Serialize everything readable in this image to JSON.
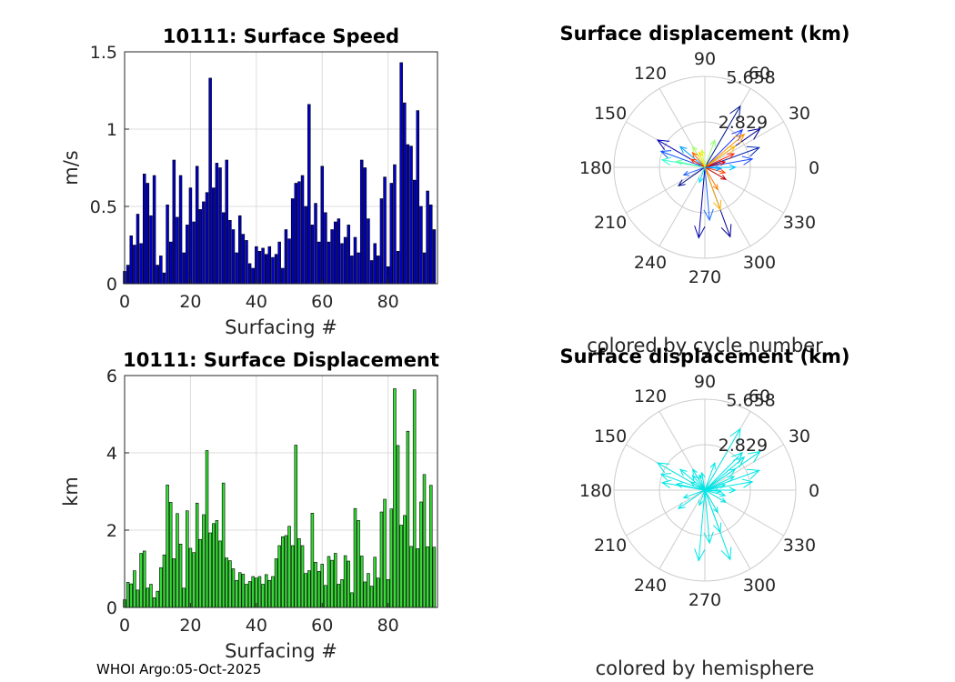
{
  "footer": "WHOI Argo:05-Oct-2025",
  "chart_data": [
    {
      "type": "bar",
      "title": "10111: Surface Speed",
      "xlabel": "Surfacing #",
      "ylabel": "m/s",
      "xlim": [
        0,
        95
      ],
      "ylim": [
        0,
        1.5
      ],
      "xticks": [
        "0",
        "20",
        "40",
        "60",
        "80"
      ],
      "yticks": [
        "0",
        "0.5",
        "1",
        "1.5"
      ],
      "bar_color": "#0000c8",
      "values": [
        0.08,
        0.12,
        0.31,
        0.25,
        0.45,
        0.26,
        0.71,
        0.65,
        0.44,
        0.7,
        0.12,
        0.18,
        0.07,
        0.51,
        0.27,
        0.8,
        0.43,
        0.7,
        0.2,
        0.38,
        0.62,
        0.4,
        0.76,
        0.48,
        0.53,
        0.59,
        1.33,
        0.62,
        0.78,
        0.75,
        0.46,
        0.8,
        0.41,
        0.35,
        0.2,
        0.44,
        0.32,
        0.28,
        0.13,
        0.1,
        0.24,
        0.21,
        0.23,
        0.19,
        0.24,
        0.17,
        0.19,
        0.27,
        0.1,
        0.35,
        0.29,
        0.55,
        0.65,
        0.66,
        0.7,
        0.5,
        1.16,
        0.38,
        0.52,
        0.27,
        0.76,
        0.46,
        0.27,
        0.35,
        0.4,
        0.42,
        0.26,
        0.3,
        0.38,
        0.18,
        0.3,
        0.2,
        0.8,
        0.75,
        0.42,
        0.15,
        0.26,
        0.18,
        0.55,
        0.69,
        0.11,
        0.65,
        0.77,
        0.21,
        1.43,
        1.17,
        0.9,
        0.89,
        0.67,
        1.12,
        0.5,
        0.2,
        0.6,
        0.51,
        0.35
      ]
    },
    {
      "type": "bar",
      "title": "10111: Surface Displacement",
      "xlabel": "Surfacing #",
      "ylabel": "km",
      "xlim": [
        0,
        95
      ],
      "ylim": [
        0,
        6
      ],
      "xticks": [
        "0",
        "20",
        "40",
        "60",
        "80"
      ],
      "yticks": [
        "0",
        "2",
        "4",
        "6"
      ],
      "bar_color": "#33dd33",
      "values": [
        0.2,
        0.65,
        0.61,
        0.95,
        0.45,
        1.4,
        1.46,
        0.5,
        0.6,
        0.25,
        0.42,
        1.03,
        1.36,
        3.17,
        2.72,
        1.26,
        2.43,
        1.64,
        0.5,
        2.5,
        1.53,
        1.42,
        2.7,
        1.76,
        2.4,
        4.06,
        1.93,
        2.17,
        2.25,
        1.72,
        3.22,
        1.28,
        1.21,
        1.0,
        0.7,
        0.9,
        0.86,
        0.6,
        0.67,
        0.8,
        0.76,
        0.8,
        0.6,
        0.85,
        0.7,
        0.8,
        1.26,
        1.6,
        1.83,
        1.86,
        2.1,
        1.6,
        4.2,
        1.78,
        1.6,
        0.88,
        0.95,
        2.44,
        1.17,
        0.93,
        1.12,
        0.57,
        1.32,
        1.22,
        1.4,
        0.6,
        0.72,
        1.34,
        1.2,
        0.38,
        2.56,
        2.25,
        1.33,
        0.66,
        0.88,
        0.55,
        1.3,
        0.76,
        2.47,
        2.8,
        0.72,
        2.55,
        5.66,
        4.19,
        2.13,
        2.38,
        4.56,
        1.58,
        5.63,
        1.52,
        2.73,
        3.44,
        1.57,
        3.16,
        1.56
      ]
    },
    {
      "type": "polar_quiver",
      "title": "Surface displacement (km)",
      "xlabel": "colored by cycle number",
      "rlim": [
        0,
        5.658
      ],
      "rticks": [
        "2.829",
        "5.658"
      ],
      "angle_ticks": [
        "0",
        "30",
        "60",
        "90",
        "120",
        "150",
        "180",
        "210",
        "240",
        "270",
        "300",
        "330"
      ],
      "vectors": [
        {
          "angle": 35,
          "r": 4.2,
          "color": "#000090"
        },
        {
          "angle": 45,
          "r": 3.3,
          "color": "#1e3cff"
        },
        {
          "angle": 60,
          "r": 4.4,
          "color": "#00188c"
        },
        {
          "angle": 20,
          "r": 3.6,
          "color": "#0a28b4"
        },
        {
          "angle": 10,
          "r": 3.0,
          "color": "#2050ff"
        },
        {
          "angle": 265,
          "r": 4.4,
          "color": "#0000a8"
        },
        {
          "angle": 290,
          "r": 4.6,
          "color": "#000090"
        },
        {
          "angle": 275,
          "r": 3.3,
          "color": "#1f6fff"
        },
        {
          "angle": 150,
          "r": 3.4,
          "color": "#0000b4"
        },
        {
          "angle": 160,
          "r": 2.9,
          "color": "#0050ff"
        },
        {
          "angle": 140,
          "r": 2.0,
          "color": "#00a0ff"
        },
        {
          "angle": 215,
          "r": 2.0,
          "color": "#00108c"
        },
        {
          "angle": 200,
          "r": 1.4,
          "color": "#2060ff"
        },
        {
          "angle": 170,
          "r": 2.7,
          "color": "#30ffd0"
        },
        {
          "angle": 168,
          "r": 1.8,
          "color": "#60ffa0"
        },
        {
          "angle": 120,
          "r": 1.5,
          "color": "#a0ff60"
        },
        {
          "angle": 100,
          "r": 1.1,
          "color": "#d0ff30"
        },
        {
          "angle": 40,
          "r": 3.2,
          "color": "#ff9000"
        },
        {
          "angle": 35,
          "r": 2.3,
          "color": "#ffc000"
        },
        {
          "angle": 25,
          "r": 2.0,
          "color": "#ff2000"
        },
        {
          "angle": 15,
          "r": 1.3,
          "color": "#d00000"
        },
        {
          "angle": 345,
          "r": 1.3,
          "color": "#ff4000"
        },
        {
          "angle": 330,
          "r": 1.5,
          "color": "#c00000"
        },
        {
          "angle": 290,
          "r": 2.8,
          "color": "#ffb000"
        },
        {
          "angle": 300,
          "r": 1.6,
          "color": "#ff8000"
        },
        {
          "angle": 130,
          "r": 1.2,
          "color": "#ff6000"
        },
        {
          "angle": 150,
          "r": 1.0,
          "color": "#ff3000"
        },
        {
          "angle": 110,
          "r": 1.0,
          "color": "#ffe000"
        },
        {
          "angle": 70,
          "r": 1.8,
          "color": "#8fff70"
        },
        {
          "angle": 0,
          "r": 1.9,
          "color": "#00c0ff"
        },
        {
          "angle": 355,
          "r": 1.0,
          "color": "#0090ff"
        },
        {
          "angle": 250,
          "r": 1.0,
          "color": "#00e0ff"
        }
      ]
    },
    {
      "type": "polar_quiver",
      "title": "Surface displacement (km)",
      "xlabel": "colored by hemisphere",
      "rlim": [
        0,
        5.658
      ],
      "rticks": [
        "2.829",
        "5.658"
      ],
      "angle_ticks": [
        "0",
        "30",
        "60",
        "90",
        "120",
        "150",
        "180",
        "210",
        "240",
        "270",
        "300",
        "330"
      ],
      "arrow_color": "#00e5e5",
      "vectors": [
        {
          "angle": 35,
          "r": 4.2
        },
        {
          "angle": 45,
          "r": 3.3
        },
        {
          "angle": 60,
          "r": 4.4
        },
        {
          "angle": 20,
          "r": 3.6
        },
        {
          "angle": 10,
          "r": 3.0
        },
        {
          "angle": 265,
          "r": 4.4
        },
        {
          "angle": 290,
          "r": 4.6
        },
        {
          "angle": 275,
          "r": 3.3
        },
        {
          "angle": 150,
          "r": 3.4
        },
        {
          "angle": 160,
          "r": 2.9
        },
        {
          "angle": 140,
          "r": 2.0
        },
        {
          "angle": 215,
          "r": 2.0
        },
        {
          "angle": 200,
          "r": 1.4
        },
        {
          "angle": 170,
          "r": 2.7
        },
        {
          "angle": 168,
          "r": 1.8
        },
        {
          "angle": 120,
          "r": 1.5
        },
        {
          "angle": 100,
          "r": 1.1
        },
        {
          "angle": 40,
          "r": 3.2
        },
        {
          "angle": 35,
          "r": 2.3
        },
        {
          "angle": 25,
          "r": 2.0
        },
        {
          "angle": 15,
          "r": 1.3
        },
        {
          "angle": 345,
          "r": 1.3
        },
        {
          "angle": 330,
          "r": 1.5
        },
        {
          "angle": 290,
          "r": 2.8
        },
        {
          "angle": 300,
          "r": 1.6
        },
        {
          "angle": 130,
          "r": 1.2
        },
        {
          "angle": 150,
          "r": 1.0
        },
        {
          "angle": 110,
          "r": 1.0
        },
        {
          "angle": 70,
          "r": 1.8
        },
        {
          "angle": 0,
          "r": 1.9
        },
        {
          "angle": 355,
          "r": 1.0
        },
        {
          "angle": 250,
          "r": 1.0
        }
      ]
    }
  ]
}
